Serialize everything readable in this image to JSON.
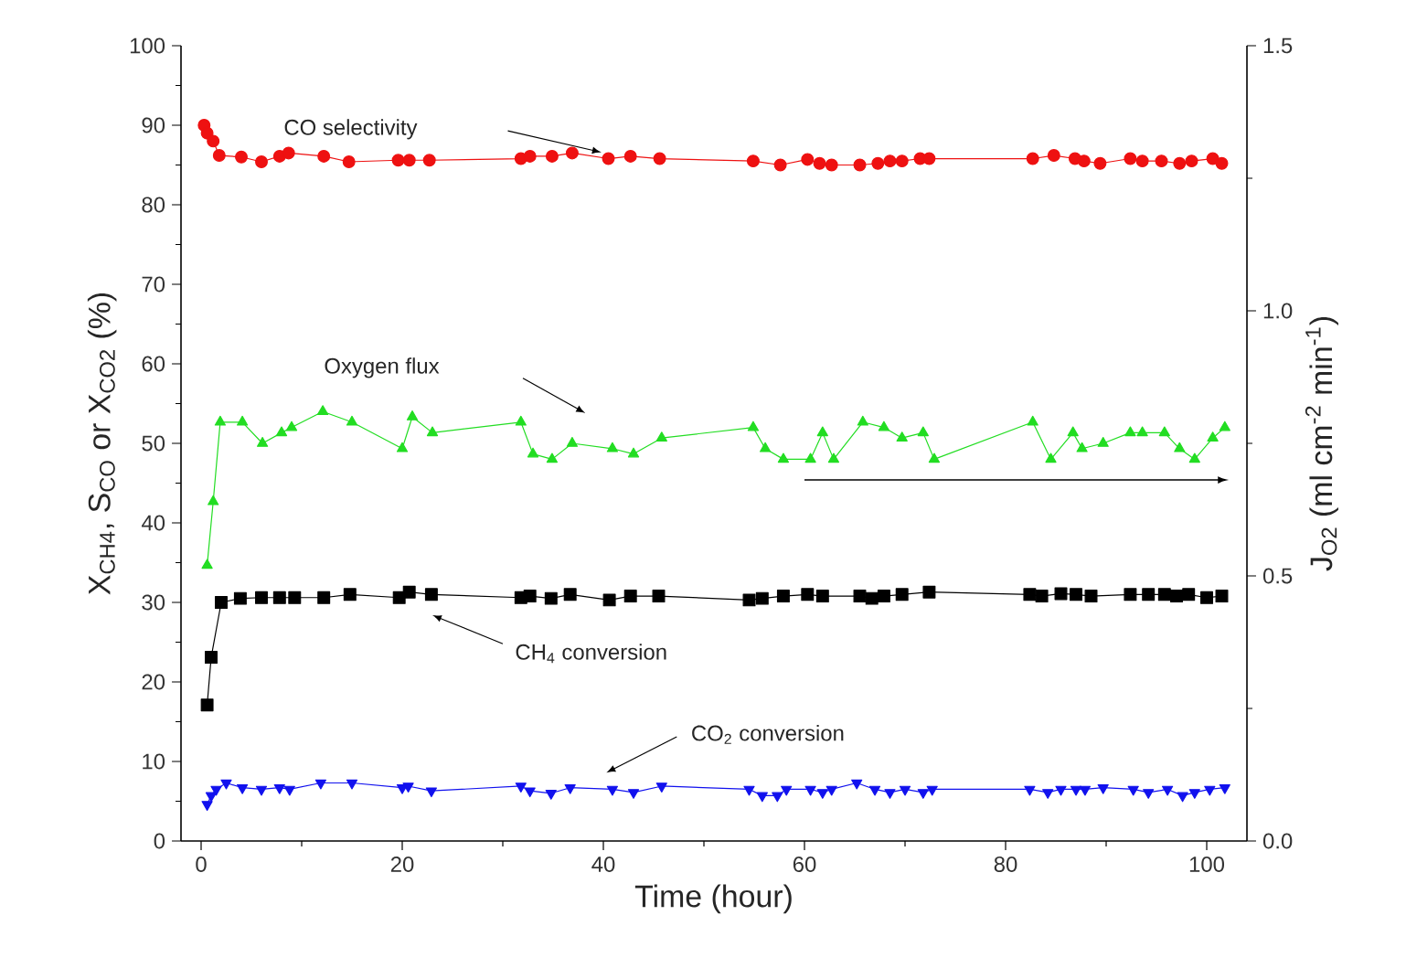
{
  "chart_data": {
    "type": "line",
    "xlabel": "Time (hour)",
    "ylabel": "X$_{CH4}$, S$_{CO}$ or X$_{CO2}$ (%)",
    "y2label": "J$_{O2}$ (ml cm$^{-2}$ min$^{-1}$)",
    "xlim": [
      -2,
      104
    ],
    "xticks": [
      0,
      20,
      40,
      60,
      80,
      100
    ],
    "ylim": [
      0,
      100
    ],
    "yticks": [
      0,
      10,
      20,
      30,
      40,
      50,
      60,
      70,
      80,
      90,
      100
    ],
    "y2lim": [
      0,
      1.5
    ],
    "y2ticks": [
      {
        "value": 0,
        "label": "0.0"
      },
      {
        "value": 0.5,
        "label": "0.5"
      },
      {
        "value": 1.0,
        "label": "1.0"
      },
      {
        "value": 1.5,
        "label": "1.5"
      }
    ],
    "series": [
      {
        "name": "CO selectivity",
        "color": "#ee1111",
        "marker": "circle",
        "x": [
          0.3,
          0.6,
          1.2,
          1.8,
          4.0,
          6.0,
          7.8,
          8.7,
          12.2,
          14.7,
          19.6,
          20.7,
          22.7,
          31.8,
          32.7,
          34.9,
          36.9,
          40.5,
          42.7,
          45.6,
          54.9,
          57.6,
          60.3,
          61.5,
          62.7,
          65.5,
          67.3,
          68.5,
          69.7,
          71.5,
          72.4,
          82.7,
          84.8,
          86.9,
          87.8,
          89.4,
          92.4,
          93.6,
          95.5,
          97.3,
          98.5,
          100.6,
          101.5
        ],
        "values": [
          90,
          89,
          88,
          86.2,
          86,
          85.4,
          86.1,
          86.5,
          86.1,
          85.4,
          85.6,
          85.6,
          85.6,
          85.8,
          86.1,
          86.1,
          86.5,
          85.8,
          86.1,
          85.8,
          85.5,
          85,
          85.7,
          85.2,
          85,
          85,
          85.2,
          85.5,
          85.5,
          85.8,
          85.8,
          85.8,
          86.2,
          85.8,
          85.5,
          85.2,
          85.8,
          85.5,
          85.5,
          85.2,
          85.5,
          85.8,
          85.2
        ]
      },
      {
        "name": "Oxygen flux",
        "color": "#22dd22",
        "marker": "triangle",
        "axis": "y2",
        "x": [
          0.6,
          1.2,
          1.9,
          4.1,
          6.1,
          8.0,
          9.0,
          12.1,
          15.0,
          20.0,
          21.0,
          23.0,
          31.8,
          33.0,
          34.9,
          36.9,
          40.9,
          43.0,
          45.8,
          54.9,
          56.1,
          57.9,
          60.6,
          61.8,
          62.9,
          65.8,
          67.9,
          69.7,
          71.8,
          72.9,
          82.7,
          84.5,
          86.7,
          87.6,
          89.7,
          92.4,
          93.6,
          95.8,
          97.3,
          98.8,
          100.6,
          101.8
        ],
        "values": [
          0.52,
          0.64,
          0.79,
          0.79,
          0.75,
          0.77,
          0.78,
          0.81,
          0.79,
          0.74,
          0.8,
          0.77,
          0.79,
          0.73,
          0.72,
          0.75,
          0.74,
          0.73,
          0.76,
          0.78,
          0.74,
          0.72,
          0.72,
          0.77,
          0.72,
          0.79,
          0.78,
          0.76,
          0.77,
          0.72,
          0.79,
          0.72,
          0.77,
          0.74,
          0.75,
          0.77,
          0.77,
          0.77,
          0.74,
          0.72,
          0.76,
          0.78
        ]
      },
      {
        "name": "CH$_{4}$ conversion",
        "color": "#000000",
        "marker": "square",
        "x": [
          0.6,
          1.0,
          2.0,
          3.9,
          6.0,
          7.8,
          9.3,
          12.2,
          14.8,
          19.7,
          20.7,
          22.9,
          31.8,
          32.7,
          34.8,
          36.7,
          40.6,
          42.7,
          45.5,
          54.5,
          55.8,
          57.9,
          60.3,
          61.8,
          65.5,
          66.7,
          67.9,
          69.7,
          72.4,
          82.4,
          83.6,
          85.5,
          87.0,
          88.5,
          92.4,
          94.2,
          95.8,
          97.0,
          98.2,
          100.0,
          101.5
        ],
        "values": [
          17.1,
          23.1,
          30.0,
          30.5,
          30.6,
          30.6,
          30.6,
          30.6,
          31.0,
          30.6,
          31.3,
          31.0,
          30.6,
          30.8,
          30.5,
          31.0,
          30.3,
          30.8,
          30.8,
          30.3,
          30.5,
          30.8,
          31.0,
          30.8,
          30.8,
          30.5,
          30.8,
          31.0,
          31.3,
          31.0,
          30.8,
          31.1,
          31.0,
          30.8,
          31.0,
          31.0,
          31.0,
          30.8,
          31.0,
          30.6,
          30.8
        ]
      },
      {
        "name": "CO$_{2}$ conversion",
        "color": "#1111ee",
        "marker": "triangle-down",
        "x": [
          0.6,
          1.0,
          1.5,
          2.5,
          4.1,
          6.0,
          7.8,
          8.8,
          11.9,
          15.0,
          20.0,
          20.6,
          22.9,
          31.8,
          32.7,
          34.8,
          36.7,
          40.9,
          43.0,
          45.8,
          54.5,
          55.8,
          57.3,
          58.2,
          60.6,
          61.8,
          62.7,
          65.2,
          67.0,
          68.5,
          70.0,
          71.8,
          72.7,
          82.4,
          84.2,
          85.5,
          87.0,
          87.9,
          89.7,
          92.7,
          94.2,
          96.1,
          97.6,
          98.8,
          100.3,
          101.8
        ],
        "values": [
          4.6,
          5.7,
          6.5,
          7.3,
          6.7,
          6.5,
          6.7,
          6.5,
          7.3,
          7.3,
          6.7,
          6.9,
          6.3,
          6.9,
          6.3,
          6.0,
          6.7,
          6.5,
          6.1,
          6.9,
          6.5,
          5.7,
          5.7,
          6.5,
          6.5,
          6.1,
          6.5,
          7.3,
          6.5,
          6.1,
          6.5,
          6.1,
          6.5,
          6.5,
          6.1,
          6.5,
          6.5,
          6.5,
          6.7,
          6.5,
          6.1,
          6.5,
          5.7,
          6.1,
          6.5,
          6.7
        ]
      }
    ]
  }
}
